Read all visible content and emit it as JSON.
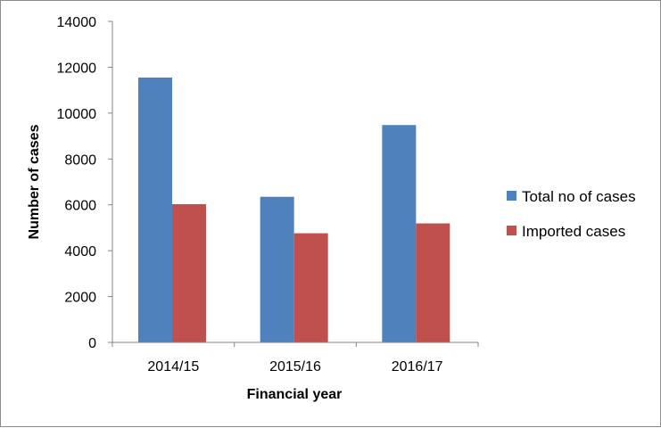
{
  "chart_data": {
    "type": "bar",
    "categories": [
      "2014/15",
      "2015/16",
      "2016/17"
    ],
    "series": [
      {
        "name": "Total no of cases",
        "values": [
          11550,
          6350,
          9480
        ],
        "color": "#4f81bd"
      },
      {
        "name": "Imported cases",
        "values": [
          6030,
          4760,
          5190
        ],
        "color": "#c0504d"
      }
    ],
    "xlabel": "Financial year",
    "ylabel": "Number of cases",
    "ylim": [
      0,
      14000
    ],
    "yticks": [
      "0",
      "2000",
      "4000",
      "6000",
      "8000",
      "10000",
      "12000",
      "14000"
    ],
    "grid": false,
    "legend_position": "right"
  }
}
